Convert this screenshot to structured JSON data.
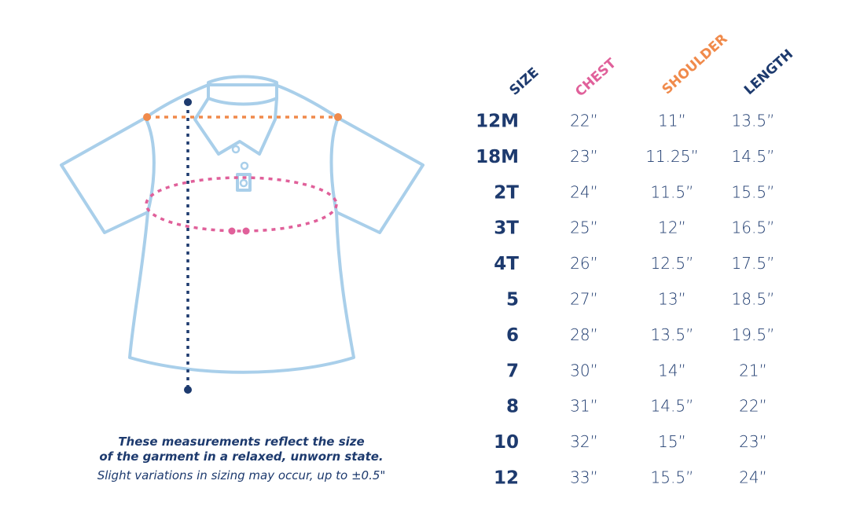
{
  "header": {
    "size": "SIZE",
    "chest": "CHEST",
    "shoulder": "SHOULDER",
    "length": "LENGTH"
  },
  "table": {
    "rows": [
      [
        "12M",
        "22”",
        "11”",
        "13.5”"
      ],
      [
        "18M",
        "23”",
        "11.25”",
        "14.5”"
      ],
      [
        "2T",
        "24”",
        "11.5”",
        "15.5”"
      ],
      [
        "3T",
        "25”",
        "12”",
        "16.5”"
      ],
      [
        "4T",
        "26”",
        "12.5”",
        "17.5”"
      ],
      [
        "5",
        "27”",
        "13”",
        "18.5”"
      ],
      [
        "6",
        "28”",
        "13.5”",
        "19.5”"
      ],
      [
        "7",
        "30”",
        "14”",
        "21”"
      ],
      [
        "8",
        "31”",
        "14.5”",
        "22”"
      ],
      [
        "10",
        "32”",
        "15”",
        "23”"
      ],
      [
        "12",
        "33”",
        "15.5”",
        "24”"
      ]
    ]
  },
  "notes": {
    "line1": "These measurements reflect the size",
    "line2": "of the garment in a relaxed, unworn state.",
    "line3": "Slight variations in sizing may occur, up to ±0.5\""
  }
}
